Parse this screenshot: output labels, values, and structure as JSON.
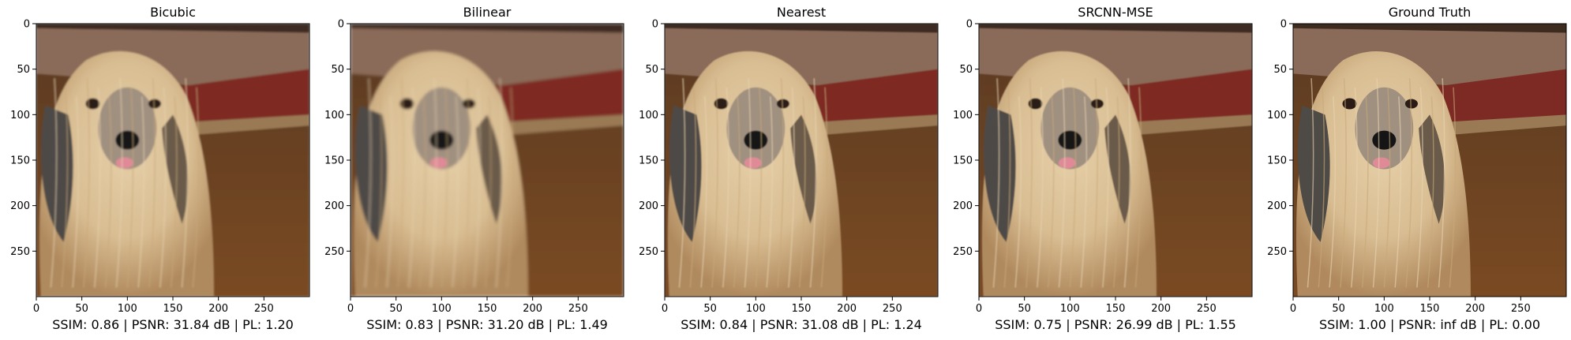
{
  "panels": [
    {
      "title": "Bicubic",
      "metrics": "SSIM: 0.86 | PSNR: 31.84 dB | PL: 1.20",
      "blur": 1.1
    },
    {
      "title": "Bilinear",
      "metrics": "SSIM: 0.83 | PSNR: 31.20 dB | PL: 1.49",
      "blur": 1.8
    },
    {
      "title": "Nearest",
      "metrics": "SSIM: 0.84 | PSNR: 31.08 dB | PL: 1.24",
      "blur": 0.8
    },
    {
      "title": "SRCNN-MSE",
      "metrics": "SSIM: 0.75 | PSNR: 26.99 dB | PL: 1.55",
      "blur": 0.9
    },
    {
      "title": "Ground Truth",
      "metrics": "SSIM: 1.00 | PSNR: inf dB | PL: 0.00",
      "blur": 0.0
    }
  ],
  "axes": {
    "x_ticks": [
      "0",
      "50",
      "100",
      "150",
      "200",
      "250"
    ],
    "y_ticks": [
      "0",
      "50",
      "100",
      "150",
      "200",
      "250"
    ],
    "range": [
      0,
      300
    ]
  },
  "colors": {
    "floor": "#7a4a22",
    "rug": "#7e2a24",
    "fur_light": "#d9bd92",
    "fur_dark": "#4e4a46",
    "nose": "#151515",
    "tongue": "#e08a98"
  }
}
